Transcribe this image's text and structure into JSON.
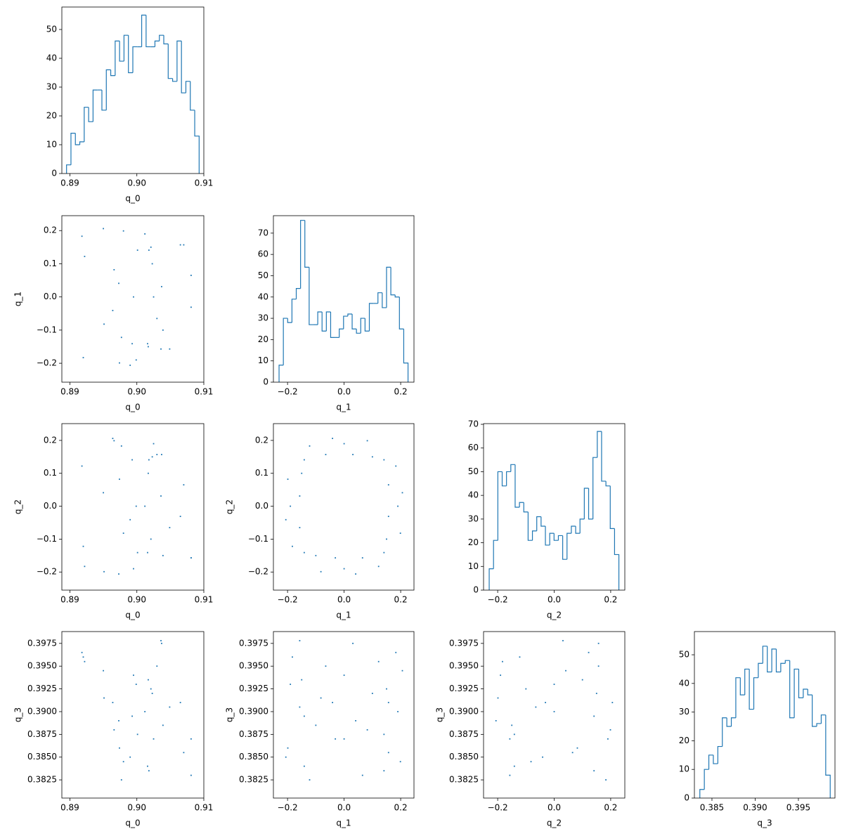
{
  "chart_data": [
    {
      "type": "histogram",
      "xlabel": "q_0",
      "color": "#1f77b4",
      "bins": [
        0.8895,
        0.89016,
        0.89082,
        0.89148,
        0.89214,
        0.8928,
        0.89346,
        0.89412,
        0.89478,
        0.89544,
        0.8961,
        0.89676,
        0.89742,
        0.89808,
        0.89874,
        0.8994,
        0.90006,
        0.90072,
        0.90138,
        0.90204,
        0.9027,
        0.90336,
        0.90402,
        0.90468,
        0.90534,
        0.906,
        0.90666,
        0.90732,
        0.90798,
        0.90864,
        0.9093
      ],
      "values": [
        3,
        14,
        10,
        11,
        23,
        18,
        29,
        29,
        22,
        36,
        34,
        46,
        39,
        48,
        35,
        44,
        44,
        55,
        44,
        44,
        46,
        48,
        45,
        33,
        32,
        46,
        28,
        32,
        22,
        13
      ],
      "xlim": [
        0.8888,
        0.91
      ],
      "xticks": [
        0.89,
        {
          "value": 0.9,
          "label": "0.90"
        },
        0.91
      ],
      "ylim": [
        0,
        57.8
      ],
      "yticks": [
        0,
        10,
        20,
        30,
        40,
        50
      ]
    },
    {
      "type": "scatter",
      "xlabel": "q_0",
      "ylabel": "q_1",
      "color": "#1f77b4",
      "x": [
        0.9012,
        0.895,
        0.907,
        0.8918,
        0.9018,
        0.9023,
        0.8966,
        0.9037,
        0.9025,
        0.8964,
        0.903,
        0.8977,
        0.8993,
        0.9017,
        0.8974,
        0.9036,
        0.8999,
        0.899,
        0.9049,
        0.892,
        0.9016,
        0.9039,
        0.8951,
        0.9081,
        0.8995,
        0.8973,
        0.9081,
        0.8922,
        0.9001,
        0.9021,
        0.898,
        0.9065
      ],
      "y": [
        0.19,
        0.206,
        0.157,
        0.183,
        0.141,
        0.1,
        0.082,
        0.031,
        0,
        -0.041,
        -0.065,
        -0.122,
        -0.141,
        -0.15,
        -0.199,
        -0.157,
        -0.19,
        -0.206,
        -0.157,
        -0.183,
        -0.141,
        -0.1,
        -0.082,
        -0.031,
        0,
        0.041,
        0.065,
        0.122,
        0.141,
        0.15,
        0.199,
        0.157
      ],
      "xlim": [
        0.8888,
        0.91
      ],
      "xticks": [
        0.89,
        {
          "value": 0.9,
          "label": "0.90"
        },
        0.91
      ],
      "ylim": [
        -0.257,
        0.245
      ],
      "yticks": [
        {
          "value": -0.2,
          "label": "−0.2"
        },
        {
          "value": -0.1,
          "label": "−0.1"
        },
        {
          "value": 0,
          "label": "0.0"
        },
        0.1,
        0.2
      ]
    },
    {
      "type": "histogram",
      "xlabel": "q_1",
      "color": "#1f77b4",
      "bins": [
        -0.23,
        -0.2148,
        -0.1996,
        -0.1844,
        -0.1692,
        -0.154,
        -0.1388,
        -0.1236,
        -0.1084,
        -0.0932,
        -0.078,
        -0.0628,
        -0.0476,
        -0.0324,
        -0.0172,
        -0.002,
        0.0132,
        0.0284,
        0.0436,
        0.0588,
        0.074,
        0.0892,
        0.1044,
        0.1196,
        0.1348,
        0.15,
        0.1652,
        0.1804,
        0.1956,
        0.2108,
        0.226
      ],
      "values": [
        8,
        30,
        28,
        39,
        44,
        76,
        54,
        27,
        27,
        33,
        24,
        33,
        21,
        21,
        25,
        31,
        32,
        25,
        23,
        30,
        24,
        37,
        37,
        42,
        35,
        54,
        41,
        40,
        25,
        9
      ],
      "xlim": [
        -0.25,
        0.247
      ],
      "xticks": [
        {
          "value": -0.2,
          "label": "−0.2"
        },
        {
          "value": 0,
          "label": "0.0"
        },
        0.2
      ],
      "ylim": [
        0,
        78.2
      ],
      "yticks": [
        0,
        10,
        20,
        30,
        40,
        50,
        60,
        70
      ]
    },
    {
      "type": "scatter",
      "xlabel": "q_0",
      "ylabel": "q_2",
      "color": "#1f77b4",
      "x": [
        0.9012,
        0.895,
        0.907,
        0.8918,
        0.9018,
        0.9023,
        0.8966,
        0.9037,
        0.9025,
        0.8964,
        0.903,
        0.8977,
        0.8993,
        0.9017,
        0.8974,
        0.9036,
        0.8999,
        0.899,
        0.9049,
        0.892,
        0.9016,
        0.9039,
        0.8951,
        0.9081,
        0.8995,
        0.8973,
        0.9081,
        0.8922,
        0.9001,
        0.9021,
        0.898,
        0.9065
      ],
      "y": [
        0,
        0.041,
        0.065,
        0.122,
        0.141,
        0.15,
        0.199,
        0.157,
        0.19,
        0.206,
        0.157,
        0.183,
        0.141,
        0.1,
        0.082,
        0.031,
        0,
        -0.041,
        -0.065,
        -0.122,
        -0.141,
        -0.15,
        -0.199,
        -0.157,
        -0.19,
        -0.206,
        -0.157,
        -0.183,
        -0.141,
        -0.1,
        -0.082,
        -0.031
      ],
      "xlim": [
        0.8888,
        0.91
      ],
      "xticks": [
        0.89,
        {
          "value": 0.9,
          "label": "0.90"
        },
        0.91
      ],
      "ylim": [
        -0.255,
        0.251
      ],
      "yticks": [
        {
          "value": -0.2,
          "label": "−0.2"
        },
        {
          "value": -0.1,
          "label": "−0.1"
        },
        {
          "value": 0,
          "label": "0.0"
        },
        0.1,
        0.2
      ]
    },
    {
      "type": "scatter",
      "xlabel": "q_1",
      "ylabel": "q_2",
      "color": "#1f77b4",
      "x": [
        0.19,
        0.206,
        0.157,
        0.183,
        0.141,
        0.1,
        0.082,
        0.031,
        0,
        -0.041,
        -0.065,
        -0.122,
        -0.141,
        -0.15,
        -0.199,
        -0.157,
        -0.19,
        -0.206,
        -0.157,
        -0.183,
        -0.141,
        -0.1,
        -0.082,
        -0.031,
        0,
        0.041,
        0.065,
        0.122,
        0.141,
        0.15,
        0.199,
        0.157
      ],
      "y": [
        0,
        0.041,
        0.065,
        0.122,
        0.141,
        0.15,
        0.199,
        0.157,
        0.19,
        0.206,
        0.157,
        0.183,
        0.141,
        0.1,
        0.082,
        0.031,
        0,
        -0.041,
        -0.065,
        -0.122,
        -0.141,
        -0.15,
        -0.199,
        -0.157,
        -0.19,
        -0.206,
        -0.157,
        -0.183,
        -0.141,
        -0.1,
        -0.082,
        -0.031
      ],
      "xlim": [
        -0.25,
        0.247
      ],
      "xticks": [
        {
          "value": -0.2,
          "label": "−0.2"
        },
        {
          "value": 0,
          "label": "0.0"
        },
        0.2
      ],
      "ylim": [
        -0.255,
        0.251
      ],
      "yticks": [
        {
          "value": -0.2,
          "label": "−0.2"
        },
        {
          "value": -0.1,
          "label": "−0.1"
        },
        {
          "value": 0,
          "label": "0.0"
        },
        0.1,
        0.2
      ]
    },
    {
      "type": "histogram",
      "xlabel": "q_2",
      "color": "#1f77b4",
      "bins": [
        -0.23,
        -0.2147,
        -0.1994,
        -0.1841,
        -0.1688,
        -0.1535,
        -0.1382,
        -0.1229,
        -0.1076,
        -0.0923,
        -0.077,
        -0.0617,
        -0.0464,
        -0.0311,
        -0.0158,
        -0.0005,
        0.0148,
        0.0301,
        0.0454,
        0.0607,
        0.076,
        0.0913,
        0.1066,
        0.1219,
        0.1372,
        0.1525,
        0.1678,
        0.1831,
        0.1984,
        0.2137,
        0.229
      ],
      "values": [
        9,
        21,
        50,
        44,
        50,
        53,
        35,
        37,
        33,
        21,
        25,
        31,
        27,
        19,
        24,
        21,
        23,
        13,
        24,
        27,
        24,
        30,
        43,
        30,
        56,
        67,
        46,
        44,
        26,
        15
      ],
      "xlim": [
        -0.25,
        0.25
      ],
      "xticks": [
        {
          "value": -0.2,
          "label": "−0.2"
        },
        {
          "value": 0,
          "label": "0.0"
        },
        0.2
      ],
      "ylim": [
        0,
        70.3
      ],
      "yticks": [
        0,
        10,
        20,
        30,
        40,
        50,
        60,
        70
      ]
    },
    {
      "type": "scatter",
      "xlabel": "q_0",
      "ylabel": "q_3",
      "color": "#1f77b4",
      "x": [
        0.9012,
        0.895,
        0.907,
        0.8918,
        0.9018,
        0.9023,
        0.8966,
        0.9037,
        0.9025,
        0.8964,
        0.903,
        0.8977,
        0.8993,
        0.9017,
        0.8974,
        0.9036,
        0.8999,
        0.899,
        0.9049,
        0.892,
        0.9016,
        0.9039,
        0.8951,
        0.9081,
        0.8995,
        0.8973,
        0.9081,
        0.8922,
        0.9001,
        0.9021,
        0.898,
        0.9065
      ],
      "y": [
        0.39,
        0.3945,
        0.3855,
        0.3965,
        0.3835,
        0.392,
        0.388,
        0.3975,
        0.387,
        0.391,
        0.395,
        0.3825,
        0.3895,
        0.3935,
        0.386,
        0.3978,
        0.393,
        0.385,
        0.3905,
        0.396,
        0.384,
        0.3885,
        0.3915,
        0.387,
        0.394,
        0.389,
        0.383,
        0.3955,
        0.3875,
        0.3925,
        0.3845,
        0.391
      ],
      "xlim": [
        0.8888,
        0.91
      ],
      "xticks": [
        0.89,
        {
          "value": 0.9,
          "label": "0.90"
        },
        0.91
      ],
      "ylim": [
        0.3805,
        0.3988
      ],
      "yticks": [
        0.3825,
        {
          "value": 0.385,
          "label": "0.3850"
        },
        0.3875,
        {
          "value": 0.39,
          "label": "0.3900"
        },
        0.3925,
        {
          "value": 0.395,
          "label": "0.3950"
        },
        0.3975
      ]
    },
    {
      "type": "scatter",
      "xlabel": "q_1",
      "ylabel": "q_3",
      "color": "#1f77b4",
      "x": [
        0.19,
        0.206,
        0.157,
        0.183,
        0.141,
        0.1,
        0.082,
        0.031,
        0,
        -0.041,
        -0.065,
        -0.122,
        -0.141,
        -0.15,
        -0.199,
        -0.157,
        -0.19,
        -0.206,
        -0.157,
        -0.183,
        -0.141,
        -0.1,
        -0.082,
        -0.031,
        0,
        0.041,
        0.065,
        0.122,
        0.141,
        0.15,
        0.199,
        0.157
      ],
      "y": [
        0.39,
        0.3945,
        0.3855,
        0.3965,
        0.3835,
        0.392,
        0.388,
        0.3975,
        0.387,
        0.391,
        0.395,
        0.3825,
        0.3895,
        0.3935,
        0.386,
        0.3978,
        0.393,
        0.385,
        0.3905,
        0.396,
        0.384,
        0.3885,
        0.3915,
        0.387,
        0.394,
        0.389,
        0.383,
        0.3955,
        0.3875,
        0.3925,
        0.3845,
        0.391
      ],
      "xlim": [
        -0.25,
        0.247
      ],
      "xticks": [
        {
          "value": -0.2,
          "label": "−0.2"
        },
        {
          "value": 0,
          "label": "0.0"
        },
        0.2
      ],
      "ylim": [
        0.3805,
        0.3988
      ],
      "yticks": [
        0.3825,
        {
          "value": 0.385,
          "label": "0.3850"
        },
        0.3875,
        {
          "value": 0.39,
          "label": "0.3900"
        },
        0.3925,
        {
          "value": 0.395,
          "label": "0.3950"
        },
        0.3975
      ]
    },
    {
      "type": "scatter",
      "xlabel": "q_2",
      "ylabel": "q_3",
      "color": "#1f77b4",
      "x": [
        0,
        0.041,
        0.065,
        0.122,
        0.141,
        0.15,
        0.199,
        0.157,
        0.19,
        0.206,
        0.157,
        0.183,
        0.141,
        0.1,
        0.082,
        0.031,
        0,
        -0.041,
        -0.065,
        -0.122,
        -0.141,
        -0.15,
        -0.199,
        -0.157,
        -0.19,
        -0.206,
        -0.157,
        -0.183,
        -0.141,
        -0.1,
        -0.082,
        -0.031
      ],
      "y": [
        0.39,
        0.3945,
        0.3855,
        0.3965,
        0.3835,
        0.392,
        0.388,
        0.3975,
        0.387,
        0.391,
        0.395,
        0.3825,
        0.3895,
        0.3935,
        0.386,
        0.3978,
        0.393,
        0.385,
        0.3905,
        0.396,
        0.384,
        0.3885,
        0.3915,
        0.387,
        0.394,
        0.389,
        0.383,
        0.3955,
        0.3875,
        0.3925,
        0.3845,
        0.391
      ],
      "xlim": [
        -0.25,
        0.25
      ],
      "xticks": [
        {
          "value": -0.2,
          "label": "−0.2"
        },
        {
          "value": 0,
          "label": "0.0"
        },
        0.2
      ],
      "ylim": [
        0.3805,
        0.3988
      ],
      "yticks": [
        0.3825,
        {
          "value": 0.385,
          "label": "0.3850"
        },
        0.3875,
        {
          "value": 0.39,
          "label": "0.3900"
        },
        0.3925,
        {
          "value": 0.395,
          "label": "0.3950"
        },
        0.3975
      ]
    },
    {
      "type": "histogram",
      "xlabel": "q_3",
      "color": "#1f77b4",
      "bins": [
        0.3836,
        0.38412,
        0.38464,
        0.38516,
        0.38568,
        0.3862,
        0.38672,
        0.38724,
        0.38776,
        0.38828,
        0.3888,
        0.38932,
        0.38984,
        0.39036,
        0.39088,
        0.3914,
        0.39192,
        0.39244,
        0.39296,
        0.39348,
        0.394,
        0.39452,
        0.39504,
        0.39556,
        0.39608,
        0.3966,
        0.39712,
        0.39764,
        0.39816,
        0.39868
      ],
      "values": [
        3,
        10,
        15,
        12,
        18,
        28,
        25,
        28,
        42,
        36,
        45,
        31,
        42,
        47,
        53,
        44,
        52,
        44,
        47,
        48,
        28,
        45,
        35,
        38,
        36,
        25,
        26,
        29,
        8
      ],
      "xlim": [
        0.38297,
        0.39923
      ],
      "xticks": [
        0.385,
        {
          "value": 0.39,
          "label": "0.390"
        },
        0.395
      ],
      "ylim": [
        0,
        58.1
      ],
      "yticks": [
        0,
        10,
        20,
        30,
        40,
        50
      ]
    }
  ]
}
